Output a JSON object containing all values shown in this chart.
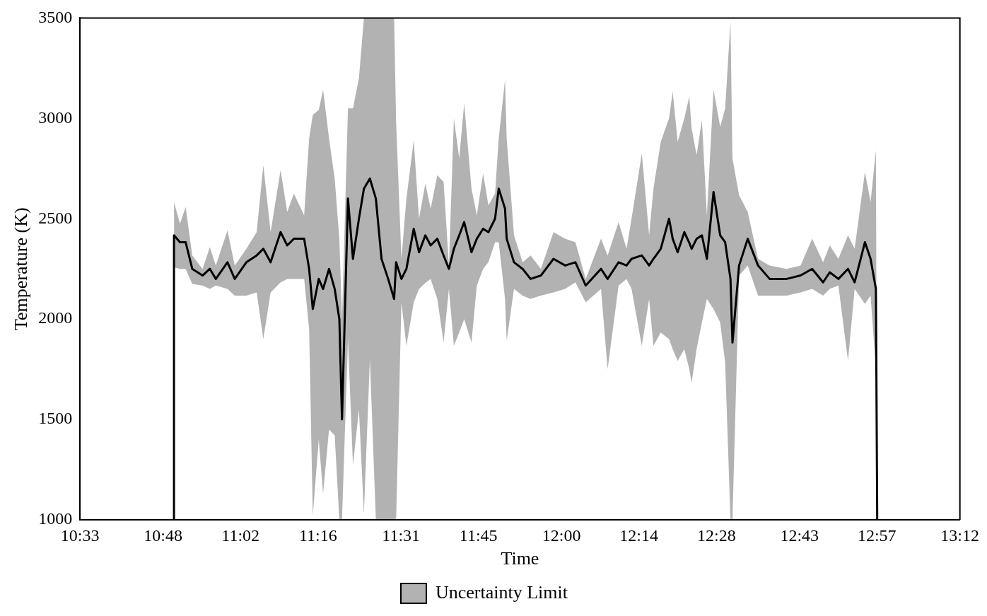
{
  "chart_data": {
    "type": "line",
    "xlabel": "Time",
    "ylabel": "Temperature (K)",
    "legend": "bottom",
    "grid": false,
    "marker": "none",
    "line_style": "solid",
    "xlim": [
      10.55,
      13.2
    ],
    "ylim": [
      1000,
      3500
    ],
    "xticks": [
      {
        "value": 10.55,
        "label": "10:33"
      },
      {
        "value": 10.8,
        "label": "10:48"
      },
      {
        "value": 11.0333,
        "label": "11:02"
      },
      {
        "value": 11.2667,
        "label": "11:16"
      },
      {
        "value": 11.5167,
        "label": "11:31"
      },
      {
        "value": 11.75,
        "label": "11:45"
      },
      {
        "value": 12.0,
        "label": "12:00"
      },
      {
        "value": 12.2333,
        "label": "12:14"
      },
      {
        "value": 12.4667,
        "label": "12:28"
      },
      {
        "value": 12.7167,
        "label": "12:43"
      },
      {
        "value": 12.95,
        "label": "12:57"
      },
      {
        "value": 13.2,
        "label": "13:12"
      }
    ],
    "yticks": [
      1000,
      1500,
      2000,
      2500,
      3000,
      3500
    ],
    "series": [
      {
        "name": "Uncertainty Limit",
        "color": "#000000",
        "x": [
          10.833,
          10.833,
          10.851,
          10.868,
          10.888,
          10.919,
          10.941,
          10.959,
          10.994,
          11.016,
          11.051,
          11.082,
          11.102,
          11.124,
          11.154,
          11.174,
          11.194,
          11.225,
          11.24,
          11.251,
          11.269,
          11.282,
          11.3,
          11.317,
          11.331,
          11.339,
          11.357,
          11.372,
          11.39,
          11.405,
          11.423,
          11.441,
          11.458,
          11.478,
          11.496,
          11.502,
          11.518,
          11.533,
          11.555,
          11.571,
          11.59,
          11.606,
          11.626,
          11.645,
          11.661,
          11.676,
          11.692,
          11.707,
          11.729,
          11.745,
          11.764,
          11.78,
          11.8,
          11.811,
          11.83,
          11.835,
          11.857,
          11.883,
          11.907,
          11.938,
          11.976,
          12.011,
          12.042,
          12.073,
          12.119,
          12.139,
          12.172,
          12.196,
          12.211,
          12.242,
          12.264,
          12.277,
          12.299,
          12.324,
          12.335,
          12.35,
          12.37,
          12.385,
          12.392,
          12.407,
          12.423,
          12.438,
          12.458,
          12.478,
          12.493,
          12.509,
          12.515,
          12.535,
          12.561,
          12.592,
          12.627,
          12.678,
          12.72,
          12.755,
          12.788,
          12.808,
          12.834,
          12.863,
          12.883,
          12.914,
          12.931,
          12.947,
          12.951
        ],
        "values": [
          1000,
          2417,
          2383,
          2383,
          2250,
          2217,
          2250,
          2200,
          2283,
          2200,
          2283,
          2317,
          2350,
          2283,
          2433,
          2367,
          2400,
          2400,
          2250,
          2050,
          2200,
          2150,
          2250,
          2150,
          2000,
          1500,
          2600,
          2300,
          2500,
          2650,
          2700,
          2600,
          2300,
          2200,
          2100,
          2283,
          2200,
          2250,
          2450,
          2333,
          2417,
          2367,
          2400,
          2317,
          2250,
          2350,
          2417,
          2483,
          2333,
          2400,
          2450,
          2433,
          2500,
          2650,
          2550,
          2400,
          2283,
          2250,
          2200,
          2217,
          2300,
          2267,
          2283,
          2167,
          2250,
          2200,
          2283,
          2267,
          2300,
          2317,
          2267,
          2300,
          2350,
          2500,
          2400,
          2333,
          2433,
          2380,
          2350,
          2400,
          2417,
          2300,
          2633,
          2417,
          2383,
          2200,
          1883,
          2267,
          2400,
          2267,
          2200,
          2200,
          2217,
          2250,
          2183,
          2233,
          2200,
          2250,
          2183,
          2383,
          2300,
          2150,
          1000
        ],
        "lower": [
          1000,
          2258,
          2250,
          2250,
          2175,
          2167,
          2150,
          2167,
          2150,
          2117,
          2117,
          2133,
          1900,
          2133,
          2183,
          2200,
          2200,
          2200,
          1950,
          1020,
          1400,
          1130,
          1450,
          1420,
          1000,
          1000,
          1900,
          1270,
          1550,
          1030,
          1800,
          1000,
          1000,
          1000,
          1000,
          1000,
          2083,
          1867,
          2083,
          2150,
          2180,
          2200,
          2100,
          1883,
          2150,
          1867,
          1933,
          2000,
          1883,
          2167,
          2250,
          2283,
          2383,
          2383,
          2100,
          1892,
          2150,
          2117,
          2100,
          2117,
          2133,
          2150,
          2183,
          2083,
          2150,
          1750,
          2167,
          2200,
          2150,
          1867,
          2100,
          1867,
          1933,
          1900,
          1850,
          1792,
          1850,
          1750,
          1683,
          1850,
          1983,
          2100,
          2050,
          1983,
          1783,
          1000,
          1000,
          2217,
          2267,
          2117,
          2117,
          2117,
          2133,
          2150,
          2117,
          2150,
          2167,
          1792,
          2150,
          2075,
          2117,
          1750,
          1000
        ],
        "upper": [
          1000,
          2583,
          2475,
          2558,
          2317,
          2250,
          2358,
          2267,
          2442,
          2267,
          2350,
          2433,
          2767,
          2433,
          2742,
          2533,
          2625,
          2517,
          2900,
          3017,
          3042,
          3142,
          2900,
          2700,
          2400,
          2000,
          3050,
          3050,
          3200,
          3500,
          3500,
          3500,
          3500,
          3500,
          3500,
          2983,
          2300,
          2600,
          2892,
          2500,
          2675,
          2550,
          2717,
          2683,
          2267,
          3000,
          2800,
          3075,
          2650,
          2517,
          2725,
          2567,
          2625,
          2900,
          3192,
          2900,
          2417,
          2283,
          2317,
          2250,
          2433,
          2400,
          2383,
          2200,
          2400,
          2317,
          2483,
          2350,
          2500,
          2825,
          2417,
          2650,
          2883,
          3000,
          3133,
          2883,
          3000,
          3108,
          2950,
          2817,
          2992,
          2517,
          3142,
          2958,
          3050,
          3483,
          2800,
          2617,
          2533,
          2300,
          2267,
          2250,
          2267,
          2400,
          2283,
          2367,
          2300,
          2417,
          2350,
          2733,
          2583,
          2842,
          1000
        ]
      }
    ]
  }
}
